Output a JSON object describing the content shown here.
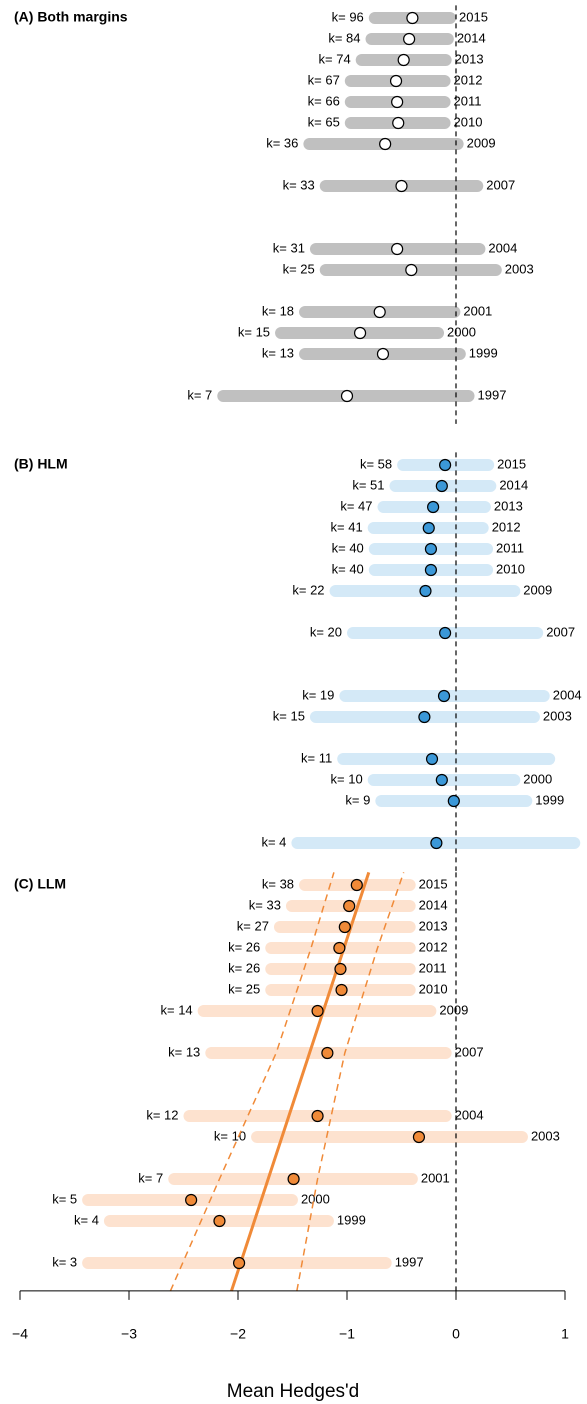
{
  "chart_data": [
    {
      "type": "forest",
      "title": "(A) Both margins",
      "bar_color": "#c0c0c0",
      "point_color": "#ffffff",
      "ref_x": 0,
      "ylim": [
        1995.67,
        2015.6
      ],
      "years": [
        2015,
        2014,
        2013,
        2012,
        2011,
        2010,
        2009,
        2007,
        2004,
        2003,
        2001,
        2000,
        1999,
        1997
      ],
      "k_labels": [
        "k= 96",
        "k= 84",
        "k= 74",
        "k= 67",
        "k= 66",
        "k= 65",
        "k= 36",
        "k= 33",
        "k= 31",
        "k= 25",
        "k= 18",
        "k= 15",
        "k= 13",
        "k= 7"
      ],
      "mean": [
        -0.4,
        -0.43,
        -0.48,
        -0.55,
        -0.54,
        -0.53,
        -0.65,
        -0.5,
        -0.54,
        -0.41,
        -0.7,
        -0.88,
        -0.67,
        -1.0
      ],
      "lower": [
        -0.8,
        -0.83,
        -0.92,
        -1.02,
        -1.02,
        -1.02,
        -1.4,
        -1.25,
        -1.34,
        -1.25,
        -1.44,
        -1.66,
        -1.44,
        -2.19
      ],
      "upper": [
        0.0,
        -0.02,
        -0.04,
        -0.05,
        -0.05,
        -0.05,
        0.07,
        0.25,
        0.27,
        0.42,
        0.04,
        -0.11,
        0.09,
        0.17
      ]
    },
    {
      "type": "forest",
      "title": "(B) HLM",
      "bar_color": "#d4e9f7",
      "point_color": "#3b98d8",
      "ref_x": 0,
      "ylim": [
        1995.67,
        2015.6
      ],
      "years": [
        2015,
        2014,
        2013,
        2012,
        2011,
        2010,
        2009,
        2007,
        2004,
        2003,
        2001,
        2000,
        1999,
        1997
      ],
      "k_labels": [
        "k= 58",
        "k= 51",
        "k= 47",
        "k= 41",
        "k= 40",
        "k= 40",
        "k= 22",
        "k= 20",
        "k= 19",
        "k= 15",
        "k= 11",
        "k= 10",
        "k= 9",
        "k= 4"
      ],
      "mean": [
        -0.1,
        -0.13,
        -0.21,
        -0.25,
        -0.23,
        -0.23,
        -0.28,
        -0.1,
        -0.11,
        -0.29,
        -0.22,
        -0.13,
        -0.02,
        -0.18
      ],
      "lower": [
        -0.54,
        -0.61,
        -0.72,
        -0.81,
        -0.8,
        -0.8,
        -1.16,
        -1.0,
        -1.07,
        -1.34,
        -1.09,
        -0.81,
        -0.74,
        -1.51
      ],
      "upper": [
        0.35,
        0.37,
        0.32,
        0.3,
        0.34,
        0.34,
        0.59,
        0.8,
        0.86,
        0.77,
        0.91,
        0.59,
        0.7,
        1.14
      ]
    },
    {
      "type": "forest",
      "title": "(C) LLM",
      "bar_color": "#fde2cf",
      "point_color": "#f08a38",
      "ref_x": 0,
      "ylim": [
        1995.67,
        2015.6
      ],
      "years": [
        2015,
        2014,
        2013,
        2012,
        2011,
        2010,
        2009,
        2007,
        2004,
        2003,
        2001,
        2000,
        1999,
        1997
      ],
      "k_labels": [
        "k= 38",
        "k= 33",
        "k= 27",
        "k= 26",
        "k= 26",
        "k= 25",
        "k= 14",
        "k= 13",
        "k= 12",
        "k= 10",
        "k= 7",
        "k= 5",
        "k= 4",
        "k= 3"
      ],
      "mean": [
        -0.91,
        -0.98,
        -1.02,
        -1.07,
        -1.06,
        -1.05,
        -1.27,
        -1.18,
        -1.27,
        -0.34,
        -1.49,
        -2.43,
        -2.17,
        -1.99
      ],
      "lower": [
        -1.44,
        -1.56,
        -1.67,
        -1.75,
        -1.75,
        -1.75,
        -2.37,
        -2.3,
        -2.5,
        -1.88,
        -2.64,
        -3.43,
        -3.23,
        -3.43
      ],
      "upper": [
        -0.37,
        -0.37,
        -0.37,
        -0.37,
        -0.37,
        -0.37,
        -0.18,
        -0.04,
        -0.04,
        0.66,
        -0.35,
        -1.45,
        -1.12,
        -0.59
      ],
      "fit": {
        "color": "#f08a38",
        "years": [
          1995.67,
          2015.6
        ],
        "x": [
          -2.06,
          -0.8
        ]
      },
      "fit_ci_lower": {
        "years": [
          1995.67,
          2001,
          2007,
          2012,
          2015.6
        ],
        "x": [
          -2.62,
          -2.17,
          -1.65,
          -1.33,
          -1.12
        ]
      },
      "fit_ci_upper": {
        "years": [
          1995.67,
          2001,
          2007,
          2012,
          2015.6
        ],
        "x": [
          -1.46,
          -1.27,
          -1.02,
          -0.72,
          -0.48
        ]
      },
      "xlabel": "Mean Hedges'd",
      "xlim": [
        -4,
        1
      ],
      "xticks": [
        {
          "value": -4,
          "label": "−4"
        },
        {
          "value": -3,
          "label": "−3"
        },
        {
          "value": -2,
          "label": "−2"
        },
        {
          "value": -1,
          "label": "−1"
        },
        0,
        1
      ]
    }
  ]
}
